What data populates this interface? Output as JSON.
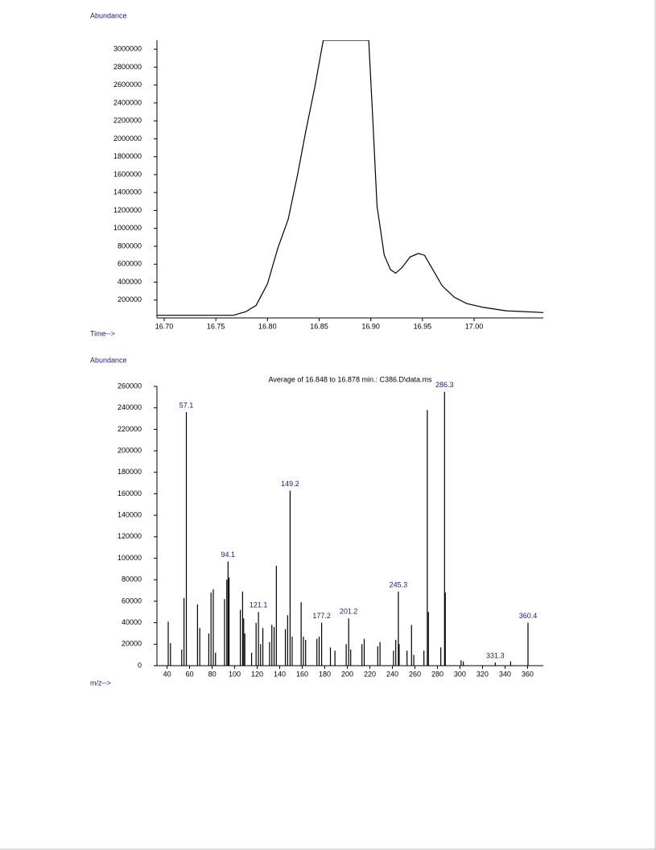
{
  "chart_data": [
    {
      "type": "line",
      "ylabel": "Abundance",
      "xlabel": "Time-->",
      "color": "#000000",
      "x": [
        16.693,
        16.767,
        16.779,
        16.789,
        16.794,
        16.8,
        16.81,
        16.82,
        16.829,
        16.837,
        16.846,
        16.854,
        16.898,
        16.902,
        16.906,
        16.913,
        16.919,
        16.924,
        16.93,
        16.938,
        16.946,
        16.952,
        16.96,
        16.969,
        16.981,
        16.993,
        17.008,
        17.031,
        17.067
      ],
      "values": [
        30000,
        30000,
        70000,
        140000,
        250000,
        380000,
        780000,
        1100000,
        1590000,
        2080000,
        2590000,
        3100000,
        3100000,
        2210000,
        1250000,
        700000,
        540000,
        500000,
        560000,
        680000,
        720000,
        700000,
        540000,
        360000,
        230000,
        160000,
        120000,
        80000,
        60000
      ],
      "xlim": [
        16.693,
        17.067
      ],
      "ylim": [
        0,
        3100000
      ],
      "xticks": [
        {
          "value": 16.7,
          "label": "16.70"
        },
        16.75,
        {
          "value": 16.8,
          "label": "16.80"
        },
        16.85,
        {
          "value": 16.9,
          "label": "16.90"
        },
        16.95,
        {
          "value": 17.0,
          "label": "17.00"
        }
      ],
      "yticks": [
        200000,
        400000,
        600000,
        800000,
        1000000,
        1200000,
        1400000,
        1600000,
        1800000,
        2000000,
        2200000,
        2400000,
        2600000,
        2800000,
        3000000
      ]
    },
    {
      "type": "bar",
      "title": "Average of 16.848 to 16.878 min.: C386.D\\data.ms",
      "ylabel": "Abundance",
      "xlabel": "m/z-->",
      "color": "#000000",
      "x": [
        41,
        43,
        53,
        55,
        57.1,
        67,
        69,
        77,
        79,
        81,
        83,
        91,
        93,
        94.1,
        95,
        105,
        107,
        108,
        109,
        115,
        119,
        121.1,
        123,
        125,
        131,
        133,
        135,
        137,
        145,
        147,
        149.2,
        151,
        159,
        161,
        163,
        173,
        175,
        177.2,
        185,
        189,
        199,
        201.2,
        203,
        213,
        215,
        227,
        229,
        241,
        243,
        245.3,
        246,
        253,
        257,
        259,
        268,
        271,
        272,
        283,
        286.3,
        287,
        301,
        303,
        331.3,
        345,
        360.4
      ],
      "values": [
        41000,
        21000,
        15000,
        63000,
        236000,
        57000,
        35000,
        30000,
        68000,
        71000,
        12000,
        62000,
        80000,
        97000,
        82000,
        52000,
        69000,
        44000,
        30000,
        12000,
        40000,
        50000,
        20000,
        35000,
        22000,
        38000,
        36000,
        93000,
        34000,
        47000,
        163000,
        27000,
        59000,
        27000,
        24000,
        25000,
        27000,
        40000,
        17000,
        14000,
        20000,
        44000,
        15000,
        20000,
        25000,
        18000,
        22000,
        14000,
        24000,
        69000,
        20000,
        14000,
        38000,
        10000,
        14000,
        238000,
        50000,
        17000,
        255000,
        68000,
        5000,
        4000,
        3000,
        4000,
        40000
      ],
      "peak_labels": [
        57.1,
        94.1,
        121.1,
        149.2,
        177.2,
        201.2,
        245.3,
        286.3,
        331.3,
        360.4
      ],
      "xlim": [
        31,
        374
      ],
      "ylim": [
        0,
        260000
      ],
      "xticks": [
        40,
        60,
        80,
        100,
        120,
        140,
        160,
        180,
        200,
        220,
        240,
        260,
        280,
        300,
        320,
        340,
        360
      ],
      "yticks": [
        0,
        20000,
        40000,
        60000,
        80000,
        100000,
        120000,
        140000,
        160000,
        180000,
        200000,
        220000,
        240000,
        260000
      ]
    }
  ]
}
